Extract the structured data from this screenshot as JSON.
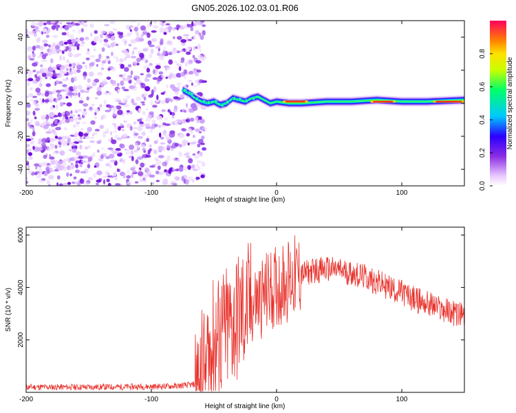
{
  "title": "GN05.2026.102.03.01.R06",
  "chart_data": [
    {
      "type": "heatmap",
      "title": "GN05.2026.102.03.01.R06",
      "xlabel": "Height of straight line (km)",
      "ylabel": "Frequency (Hz)",
      "xlim": [
        -200,
        150
      ],
      "ylim": [
        -50,
        50
      ],
      "x_ticks": [
        -200,
        -100,
        0,
        100
      ],
      "y_ticks": [
        -40,
        -20,
        0,
        20,
        40
      ],
      "noise_region_x": [
        -200,
        -65
      ],
      "signal_trace": {
        "x": [
          -75,
          -70,
          -65,
          -60,
          -55,
          -50,
          -45,
          -40,
          -35,
          -30,
          -25,
          -20,
          -15,
          -10,
          -5,
          0,
          10,
          20,
          40,
          60,
          80,
          100,
          120,
          150
        ],
        "freq": [
          8,
          6,
          3,
          1,
          0,
          1,
          -1,
          0,
          3,
          2,
          1,
          3,
          4,
          2,
          0,
          1,
          0,
          0,
          1,
          1,
          2,
          1,
          1,
          2
        ]
      },
      "colorbar": {
        "label": "Normalized spectral amplitude",
        "range": [
          0,
          1
        ],
        "ticks": [
          "0.0",
          "0.2",
          "0.4",
          "0.6",
          "0.8"
        ]
      }
    },
    {
      "type": "line",
      "xlabel": "Height of straight line (km)",
      "ylabel": "SNR (10 * v/v)",
      "xlim": [
        -200,
        150
      ],
      "ylim": [
        0,
        6300
      ],
      "x_ticks": [
        -200,
        -100,
        0,
        100
      ],
      "y_ticks": [
        2000,
        4000,
        6000
      ],
      "color": "#e8302a",
      "series": [
        {
          "name": "SNR",
          "x": [
            -200,
            -150,
            -100,
            -80,
            -65,
            -60,
            -55,
            -50,
            -45,
            -40,
            -35,
            -30,
            -25,
            -20,
            -15,
            -10,
            -5,
            0,
            10,
            20,
            30,
            40,
            50,
            60,
            70,
            80,
            90,
            100,
            110,
            120,
            130,
            140,
            150
          ],
          "y": [
            200,
            200,
            220,
            240,
            300,
            600,
            1300,
            1800,
            2100,
            2300,
            2600,
            2900,
            3100,
            3300,
            3500,
            3700,
            3900,
            4000,
            4300,
            4500,
            4650,
            4700,
            4650,
            4550,
            4400,
            4200,
            4000,
            3800,
            3550,
            3400,
            3200,
            3050,
            2900
          ]
        }
      ]
    }
  ]
}
